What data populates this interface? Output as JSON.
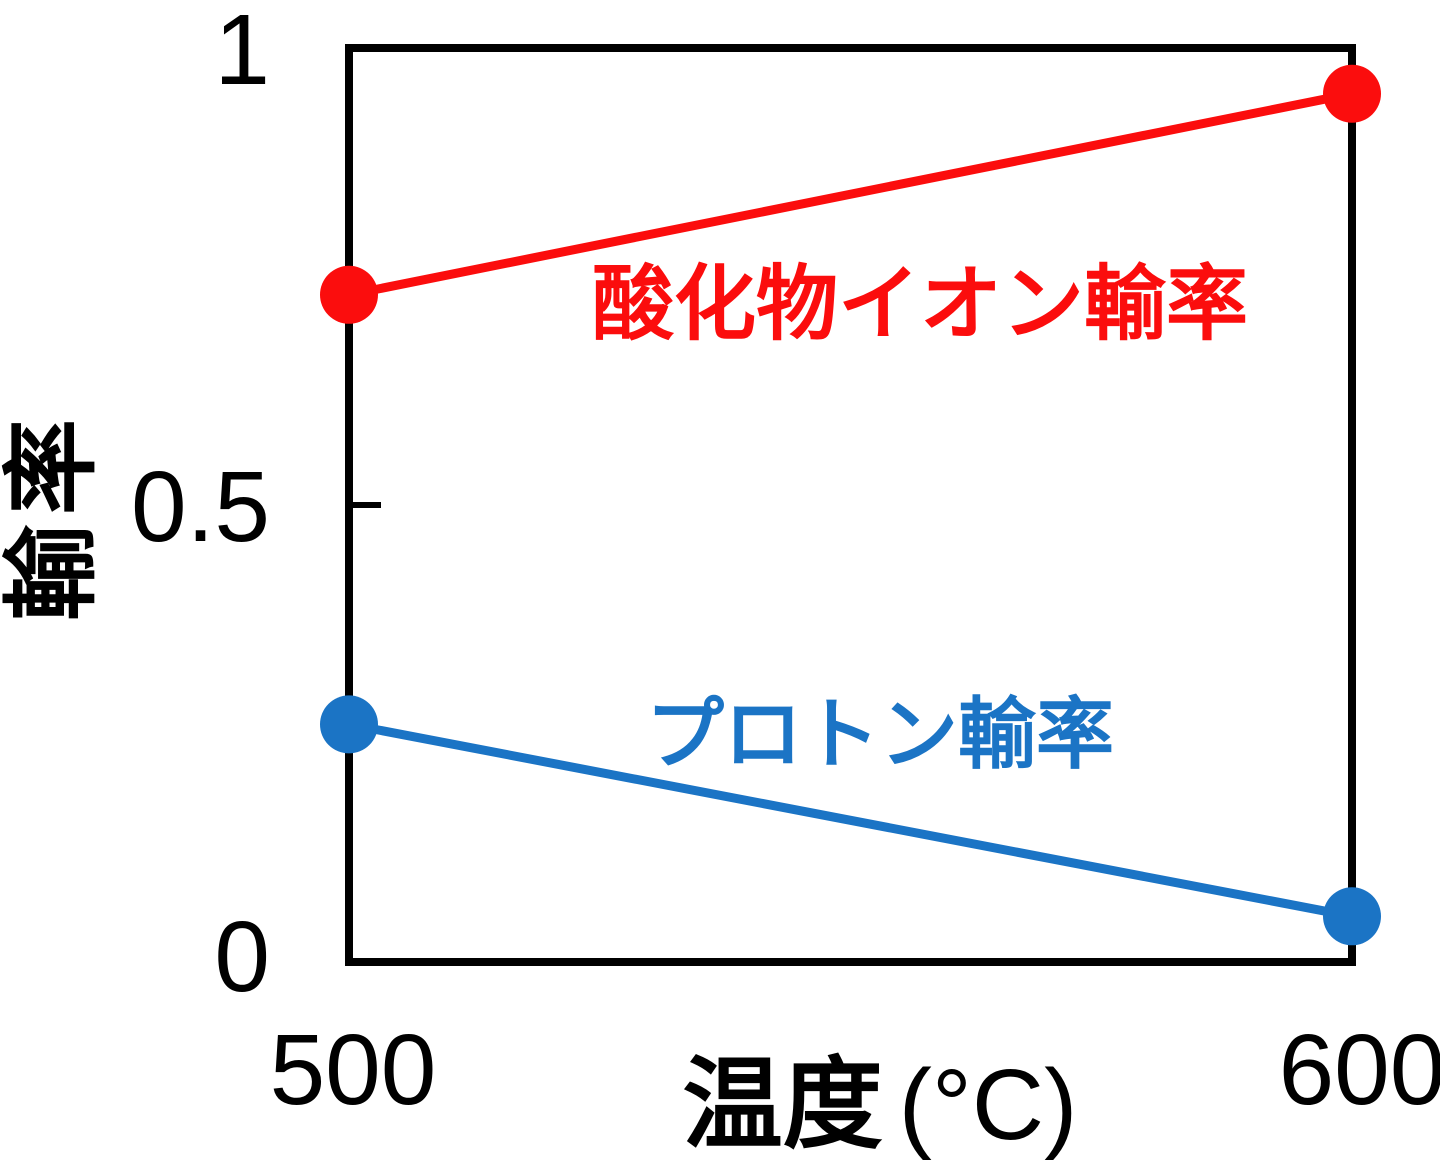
{
  "chart_data": {
    "type": "line",
    "title": "",
    "xlabel": "温度 (°C)",
    "xlabel_main": "温度",
    "xlabel_unit": "(°C)",
    "ylabel": "輸率",
    "x": [
      500,
      600
    ],
    "xlim": [
      500,
      600
    ],
    "ylim": [
      0,
      1
    ],
    "xticks": [
      500,
      600
    ],
    "yticks": [
      0,
      0.5,
      1
    ],
    "xtick_labels": [
      "500",
      "600"
    ],
    "ytick_labels": [
      "0",
      "0.5",
      "1"
    ],
    "grid": false,
    "legend_position": "inline-annotations",
    "frame_color": "#000000",
    "series": [
      {
        "name": "酸化物イオン輸率",
        "color": "#FB0D0D",
        "marker": "circle",
        "values": [
          0.73,
          0.95
        ]
      },
      {
        "name": "プロトン輸率",
        "color": "#1B74C5",
        "marker": "circle",
        "values": [
          0.26,
          0.05
        ]
      }
    ],
    "annotations": [
      {
        "text": "酸化物イオン輸率",
        "color": "#FB0D0D",
        "anchor": "above red line, center of plot"
      },
      {
        "text": "プロトン輸率",
        "color": "#1B74C5",
        "anchor": "above blue line, center of plot"
      }
    ]
  }
}
